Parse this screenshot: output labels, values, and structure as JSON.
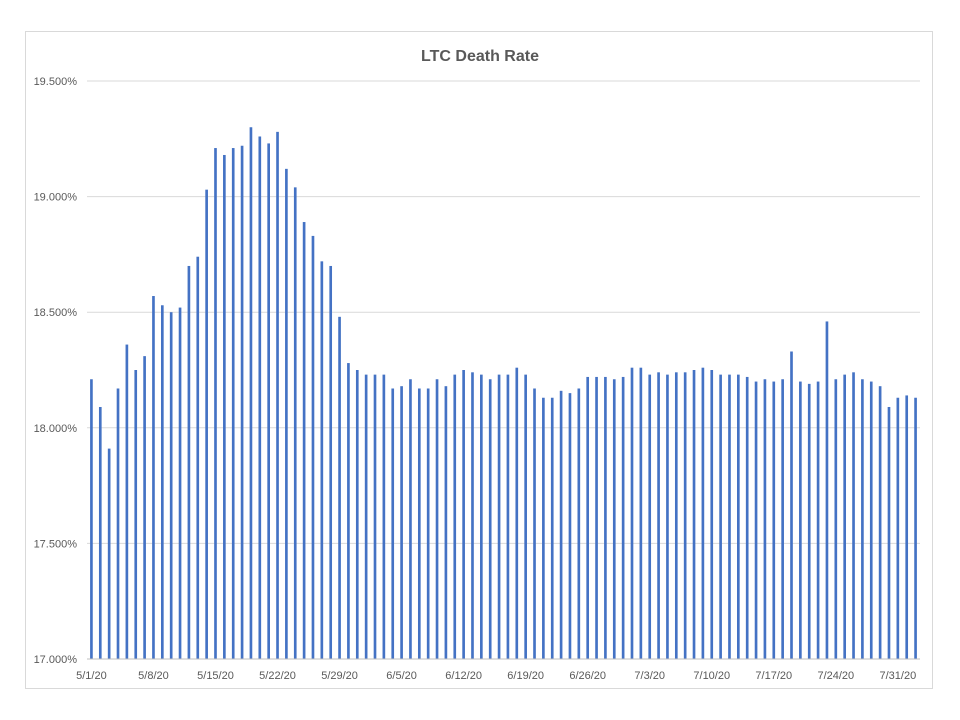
{
  "chart_data": {
    "type": "bar",
    "title": "LTC Death Rate",
    "xlabel": "",
    "ylabel": "",
    "ylim": [
      17.0,
      19.5
    ],
    "yticks": [
      "17.000%",
      "17.500%",
      "18.000%",
      "18.500%",
      "19.000%",
      "19.500%"
    ],
    "ytick_values": [
      17.0,
      17.5,
      18.0,
      18.5,
      19.0,
      19.5
    ],
    "xtick_labels": [
      "5/1/20",
      "5/8/20",
      "5/15/20",
      "5/22/20",
      "5/29/20",
      "6/5/20",
      "6/12/20",
      "6/19/20",
      "6/26/20",
      "7/3/20",
      "7/10/20",
      "7/17/20",
      "7/24/20",
      "7/31/20"
    ],
    "xtick_every": 7,
    "grid": true,
    "bar_color": "#4472c4",
    "categories": [
      "5/1/20",
      "5/2/20",
      "5/3/20",
      "5/4/20",
      "5/5/20",
      "5/6/20",
      "5/7/20",
      "5/8/20",
      "5/9/20",
      "5/10/20",
      "5/11/20",
      "5/12/20",
      "5/13/20",
      "5/14/20",
      "5/15/20",
      "5/16/20",
      "5/17/20",
      "5/18/20",
      "5/19/20",
      "5/20/20",
      "5/21/20",
      "5/22/20",
      "5/23/20",
      "5/24/20",
      "5/25/20",
      "5/26/20",
      "5/27/20",
      "5/28/20",
      "5/29/20",
      "5/30/20",
      "5/31/20",
      "6/1/20",
      "6/2/20",
      "6/3/20",
      "6/4/20",
      "6/5/20",
      "6/6/20",
      "6/7/20",
      "6/8/20",
      "6/9/20",
      "6/10/20",
      "6/11/20",
      "6/12/20",
      "6/13/20",
      "6/14/20",
      "6/15/20",
      "6/16/20",
      "6/17/20",
      "6/18/20",
      "6/19/20",
      "6/20/20",
      "6/21/20",
      "6/22/20",
      "6/23/20",
      "6/24/20",
      "6/25/20",
      "6/26/20",
      "6/27/20",
      "6/28/20",
      "6/29/20",
      "6/30/20",
      "7/1/20",
      "7/2/20",
      "7/3/20",
      "7/4/20",
      "7/5/20",
      "7/6/20",
      "7/7/20",
      "7/8/20",
      "7/9/20",
      "7/10/20",
      "7/11/20",
      "7/12/20",
      "7/13/20",
      "7/14/20",
      "7/15/20",
      "7/16/20",
      "7/17/20",
      "7/18/20",
      "7/19/20",
      "7/20/20",
      "7/21/20",
      "7/22/20",
      "7/23/20",
      "7/24/20",
      "7/25/20",
      "7/26/20",
      "7/27/20",
      "7/28/20",
      "7/29/20",
      "7/30/20",
      "7/31/20",
      "8/1/20",
      "8/2/20"
    ],
    "values": [
      18.21,
      18.09,
      17.91,
      18.17,
      18.36,
      18.25,
      18.31,
      18.57,
      18.53,
      18.5,
      18.52,
      18.7,
      18.74,
      19.03,
      19.21,
      19.18,
      19.21,
      19.22,
      19.3,
      19.26,
      19.23,
      19.28,
      19.12,
      19.04,
      18.89,
      18.83,
      18.72,
      18.7,
      18.48,
      18.28,
      18.25,
      18.23,
      18.23,
      18.23,
      18.17,
      18.18,
      18.21,
      18.17,
      18.17,
      18.21,
      18.18,
      18.23,
      18.25,
      18.24,
      18.23,
      18.21,
      18.23,
      18.23,
      18.26,
      18.23,
      18.17,
      18.13,
      18.13,
      18.16,
      18.15,
      18.17,
      18.22,
      18.22,
      18.22,
      18.21,
      18.22,
      18.26,
      18.26,
      18.23,
      18.24,
      18.23,
      18.24,
      18.24,
      18.25,
      18.26,
      18.25,
      18.23,
      18.23,
      18.23,
      18.22,
      18.2,
      18.21,
      18.2,
      18.21,
      18.33,
      18.2,
      18.19,
      18.2,
      18.46,
      18.21,
      18.23,
      18.24,
      18.21,
      18.2,
      18.18,
      18.09,
      18.13,
      18.14,
      18.13
    ]
  }
}
